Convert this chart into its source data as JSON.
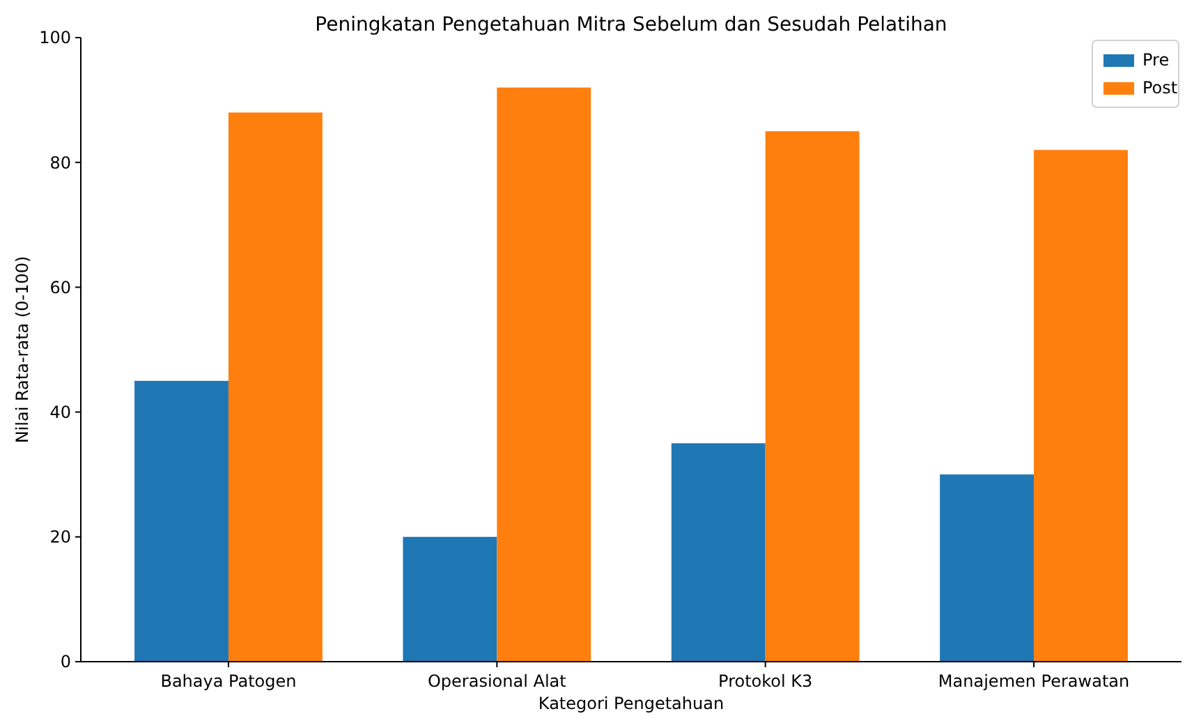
{
  "chart_data": {
    "type": "bar",
    "title": "Peningkatan Pengetahuan Mitra Sebelum dan Sesudah Pelatihan",
    "xlabel": "Kategori Pengetahuan",
    "ylabel": "Nilai Rata-rata (0-100)",
    "categories": [
      "Bahaya Patogen",
      "Operasional Alat",
      "Protokol K3",
      "Manajemen Perawatan"
    ],
    "series": [
      {
        "name": "Pre",
        "color": "#1f77b4",
        "values": [
          45,
          20,
          35,
          30
        ]
      },
      {
        "name": "Post",
        "color": "#ff7f0e",
        "values": [
          88,
          92,
          85,
          82
        ]
      }
    ],
    "ylim": [
      0,
      100
    ],
    "yticks": [
      0,
      20,
      40,
      60,
      80,
      100
    ],
    "grid": false,
    "legend": "top right"
  }
}
